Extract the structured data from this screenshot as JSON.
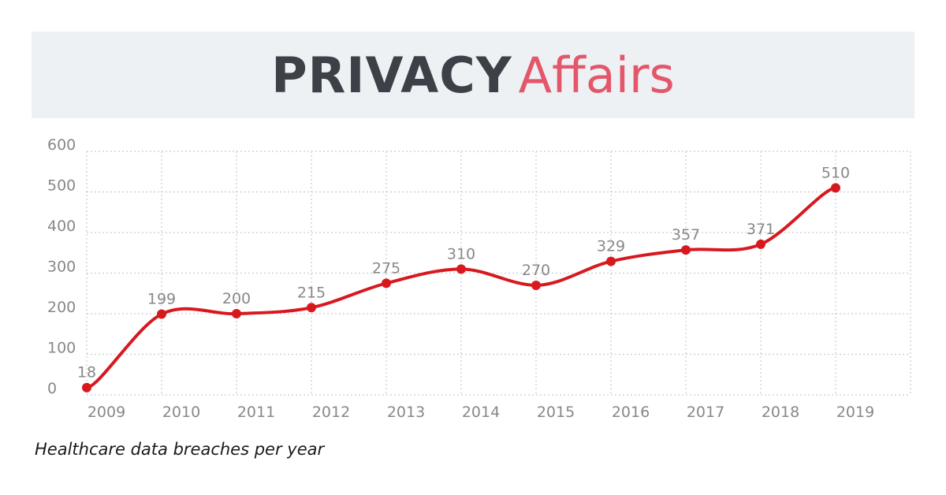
{
  "brand": {
    "name_primary": "PRIVACY",
    "name_secondary": "Affairs"
  },
  "caption": "Healthcare data breaches per year",
  "colors": {
    "banner_bg": "#edf1f4",
    "brand_dark": "#3d4147",
    "brand_accent": "#e4566a",
    "line": "#d7191f",
    "grid": "#cccccc",
    "label": "#888888"
  },
  "chart_data": {
    "type": "line",
    "title": "",
    "xlabel": "",
    "ylabel": "",
    "x": [
      "2009",
      "2010",
      "2011",
      "2012",
      "2013",
      "2014",
      "2015",
      "2016",
      "2017",
      "2018",
      "2019"
    ],
    "values": [
      18,
      199,
      200,
      215,
      275,
      310,
      270,
      329,
      357,
      371,
      510
    ],
    "ylim": [
      0,
      600
    ],
    "yticks": [
      0,
      100,
      200,
      300,
      400,
      500,
      600
    ],
    "grid": true,
    "smooth": true,
    "data_labels": true
  }
}
